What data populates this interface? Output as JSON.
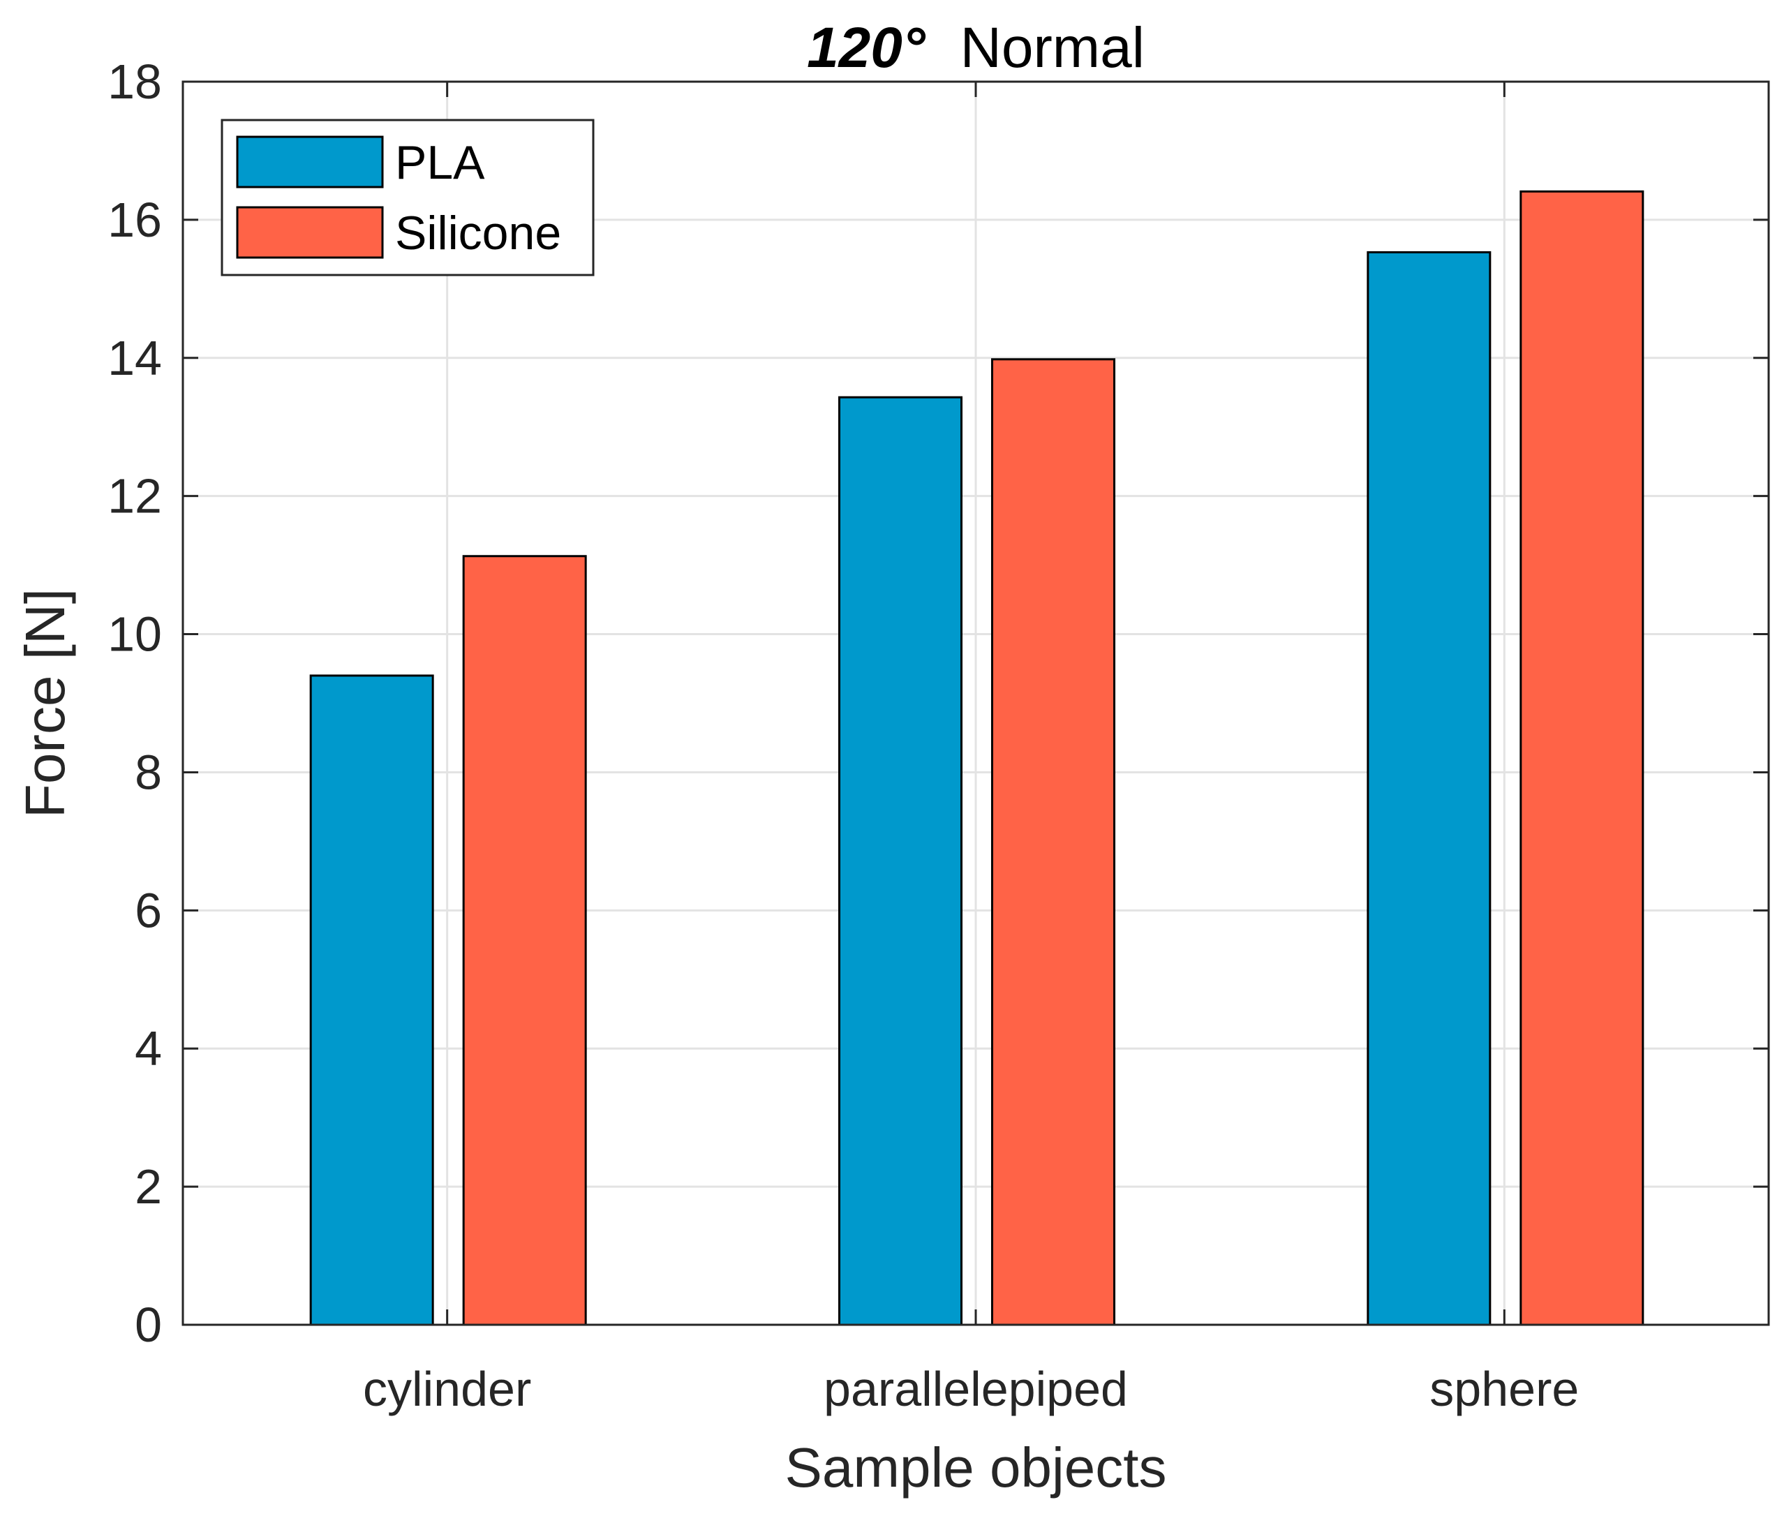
{
  "chart_data": {
    "type": "bar",
    "title_bold": "120°",
    "title_rest": "Normal",
    "xlabel": "Sample objects",
    "ylabel": "Force [N]",
    "categories": [
      "cylinder",
      "parallelepiped",
      "sphere"
    ],
    "series": [
      {
        "name": "PLA",
        "color": "#0099CC",
        "values": [
          9.4,
          13.43,
          15.53
        ]
      },
      {
        "name": "Silicone",
        "color": "#FF6347",
        "values": [
          11.13,
          13.98,
          16.41
        ]
      }
    ],
    "ylim": [
      0,
      18
    ],
    "yticks": [
      "0",
      "2",
      "4",
      "6",
      "8",
      "10",
      "12",
      "14",
      "16",
      "18"
    ],
    "grid": true,
    "legend_position": "top-left"
  }
}
